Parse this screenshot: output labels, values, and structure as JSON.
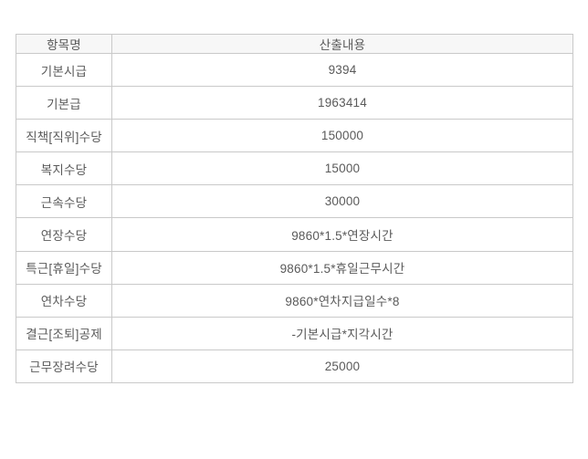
{
  "table": {
    "columns": [
      {
        "label": "항목명"
      },
      {
        "label": "산출내용"
      }
    ],
    "rows": [
      {
        "item": "기본시급",
        "value": "9394"
      },
      {
        "item": "기본급",
        "value": "1963414"
      },
      {
        "item": "직책[직위]수당",
        "value": "150000"
      },
      {
        "item": "복지수당",
        "value": "15000"
      },
      {
        "item": "근속수당",
        "value": "30000"
      },
      {
        "item": "연장수당",
        "value": "9860*1.5*연장시간"
      },
      {
        "item": "특근[휴일]수당",
        "value": "9860*1.5*휴일근무시간"
      },
      {
        "item": "연차수당",
        "value": "9860*연차지급일수*8"
      },
      {
        "item": "결근[조퇴]공제",
        "value": "-기본시급*지각시간"
      },
      {
        "item": "근무장려수당",
        "value": "25000"
      }
    ],
    "colors": {
      "header_bg": "#f7f7f7",
      "cell_border": "#c9c9c9",
      "outer_border": "#ababab",
      "text": "#5a5a5a",
      "page_bg": "#ffffff"
    }
  }
}
